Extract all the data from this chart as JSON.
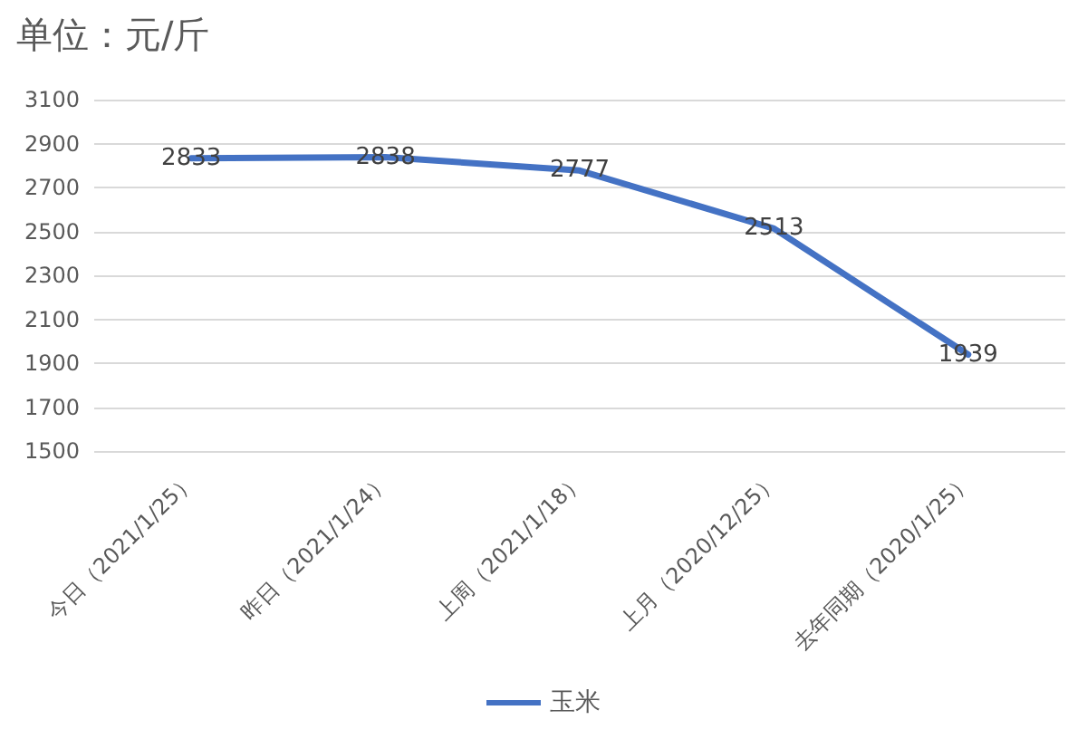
{
  "chart_data": {
    "type": "line",
    "title": "单位：元/斤",
    "categories": [
      "今日（2021/1/25）",
      "昨日（2021/1/24）",
      "上周（2021/1/18）",
      "上月（2020/12/25）",
      "去年同期（2020/1/25）"
    ],
    "series": [
      {
        "name": "玉米",
        "color": "#4472c4",
        "values": [
          2833,
          2838,
          2777,
          2513,
          1939
        ]
      }
    ],
    "ylim": [
      1500,
      3100
    ],
    "yticks": [
      1500,
      1700,
      1900,
      2100,
      2300,
      2500,
      2700,
      2900,
      3100
    ],
    "grid": "y",
    "legend": "bottom",
    "data_labels": true,
    "marker": "none",
    "line_style": "solid"
  }
}
